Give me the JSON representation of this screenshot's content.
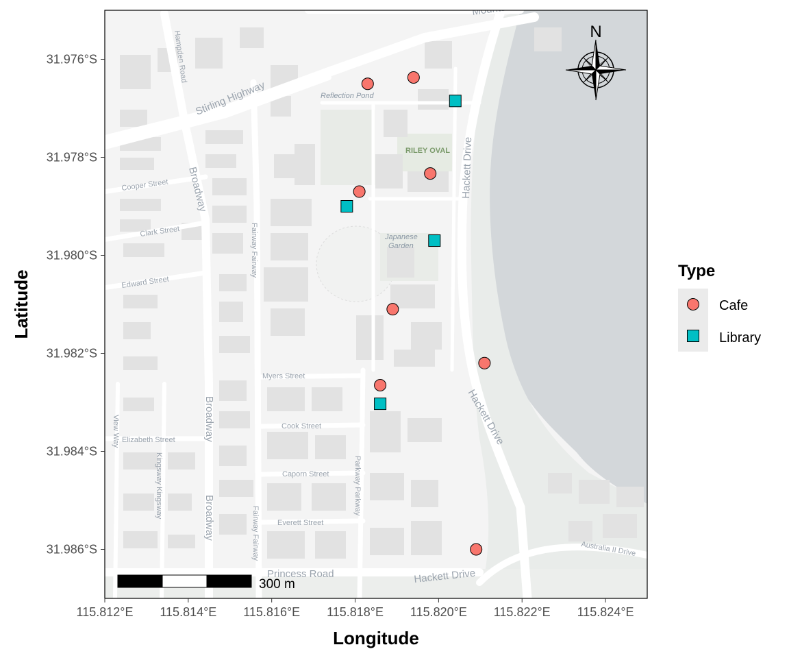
{
  "chart_data": {
    "type": "scatter",
    "xlabel": "Longitude",
    "ylabel": "Latitude",
    "xlim": [
      115.812,
      115.825
    ],
    "ylim": [
      -31.987,
      -31.975
    ],
    "x_ticks": [
      115.812,
      115.814,
      115.816,
      115.818,
      115.82,
      115.822,
      115.824
    ],
    "x_tick_labels": [
      "115.812°E",
      "115.814°E",
      "115.816°E",
      "115.818°E",
      "115.820°E",
      "115.822°E",
      "115.824°E"
    ],
    "y_ticks": [
      -31.976,
      -31.978,
      -31.98,
      -31.982,
      -31.984,
      -31.986
    ],
    "y_tick_labels": [
      "31.976°S",
      "31.978°S",
      "31.980°S",
      "31.982°S",
      "31.984°S",
      "31.986°S"
    ],
    "legend": {
      "title": "Type",
      "position": "right"
    },
    "series": [
      {
        "name": "Cafe",
        "shape": "circle",
        "color": "#F8766D",
        "points": [
          {
            "x": 115.8183,
            "y": -31.9765
          },
          {
            "x": 115.8194,
            "y": -31.97637
          },
          {
            "x": 115.8198,
            "y": -31.97833
          },
          {
            "x": 115.8181,
            "y": -31.9787
          },
          {
            "x": 115.8189,
            "y": -31.9811
          },
          {
            "x": 115.8211,
            "y": -31.9822
          },
          {
            "x": 115.8186,
            "y": -31.98265
          },
          {
            "x": 115.8209,
            "y": -31.986
          }
        ]
      },
      {
        "name": "Library",
        "shape": "square",
        "color": "#00BFC4",
        "points": [
          {
            "x": 115.8204,
            "y": -31.97685
          },
          {
            "x": 115.8178,
            "y": -31.979
          },
          {
            "x": 115.8199,
            "y": -31.9797
          },
          {
            "x": 115.8186,
            "y": -31.98303
          }
        ]
      }
    ],
    "scale_bar": {
      "label": "300 m"
    },
    "north_arrow": {
      "label": "N"
    }
  },
  "map_labels": {
    "mounts_bay": "Mounts Bay",
    "stirling_highway": "Stirling Highway",
    "hampden_road": "Hampden Road",
    "broadway": "Broadway",
    "cooper_street": "Cooper Street",
    "clark_street": "Clark Street",
    "edward_street": "Edward Street",
    "fairway": "Fairway Fairway",
    "myers_street": "Myers Street",
    "elizabeth_street": "Elizabeth Street",
    "cook_street": "Cook Street",
    "caporn_street": "Caporn Street",
    "everett_street": "Everett Street",
    "princess_road": "Princess Road",
    "kingsway": "Kingsway Kingsway",
    "view_way": "View Way",
    "parkway": "Parkway Parkway",
    "hackett_drive": "Hackett Drive",
    "australia_ii_drive": "Australia II Drive",
    "reflection_pond": "Reflection Pond",
    "riley_oval": "RILEY OVAL",
    "japanese": "Japanese",
    "garden": "Garden"
  },
  "colors": {
    "water": "#d3d7da",
    "land": "#f4f4f4",
    "park": "#eaece9",
    "building": "#e3e3e3",
    "road": "#ffffff"
  }
}
